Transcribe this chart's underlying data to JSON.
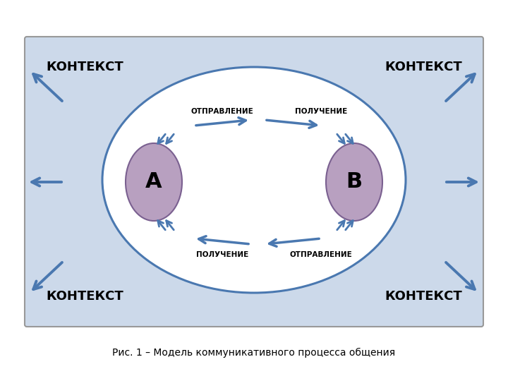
{
  "bg_outer": "#ffffff",
  "bg_rect": "#ccd9ea",
  "bg_ellipse_big": "#ffffff",
  "ellipse_big_edge": "#4a78b0",
  "ellipse_color": "#b8a0c0",
  "ellipse_edge": "#7a6090",
  "arrow_color": "#4a78b0",
  "text_context": "КОНТЕКСТ",
  "text_A": "А",
  "text_B": "В",
  "text_otpr_top": "ОТПРАВЛЕНИЕ",
  "text_poluch_top": "ПОЛУЧЕНИЕ",
  "text_poluch_bot": "ПОЛУЧЕНИЕ",
  "text_otpr_bot": "ОТПРАВЛЕНИЕ",
  "caption": "Рис. 1 – Модель коммуникативного процесса общения"
}
